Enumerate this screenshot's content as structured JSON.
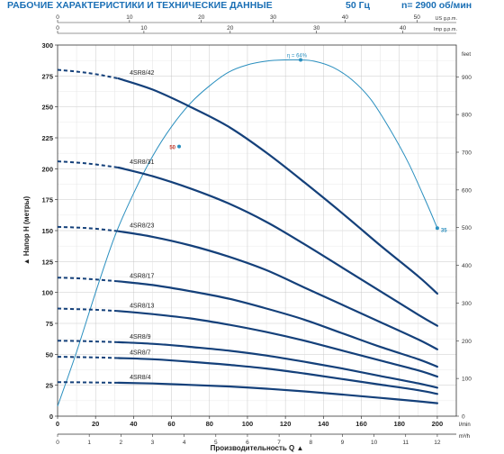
{
  "header": {
    "title": "РАБОЧИЕ ХАРАКТЕРИСТИКИ И ТЕХНИЧЕСКИЕ ДАННЫЕ",
    "frequency": "50 Гц",
    "speed": "n= 2900 об/мин"
  },
  "chart_data": {
    "type": "line",
    "ylabel": "Напор H (метры)",
    "ylabel_arrow": "▲",
    "xlabel": "Производительность Q",
    "xlabel_arrow": "▲",
    "ylim": [
      0,
      300
    ],
    "yticks": [
      0,
      25,
      50,
      75,
      100,
      125,
      150,
      175,
      200,
      225,
      250,
      275,
      300
    ],
    "xlim_lmin": [
      0,
      210
    ],
    "xticks_lmin": [
      0,
      20,
      40,
      60,
      80,
      100,
      120,
      140,
      160,
      180,
      200
    ],
    "xunit_lmin": "l/min",
    "xticks_m3h": [
      0,
      1,
      2,
      3,
      4,
      5,
      6,
      7,
      8,
      9,
      10,
      11,
      12
    ],
    "xunit_m3h": "m³/h",
    "top_axes": [
      {
        "unit": "US g.p.m.",
        "ticks": [
          0,
          10,
          20,
          30,
          40,
          50
        ]
      },
      {
        "unit": "Imp g.p.m.",
        "ticks": [
          0,
          10,
          20,
          30,
          40
        ]
      }
    ],
    "feet_unit": "feet",
    "feet_ticks": [
      0,
      100,
      200,
      300,
      400,
      500,
      600,
      700,
      800,
      900
    ],
    "grid": true,
    "series": [
      {
        "name": "4SR8/42",
        "dash_x": [
          0,
          10,
          20,
          32
        ],
        "dash_y": [
          280,
          278.5,
          276.5,
          273
        ],
        "x": [
          32,
          50,
          70,
          90,
          110,
          130,
          150,
          170,
          190,
          200
        ],
        "y": [
          273,
          264,
          250,
          234,
          213,
          189,
          164,
          138,
          113,
          99
        ]
      },
      {
        "name": "4SR8/31",
        "dash_x": [
          0,
          10,
          20,
          32
        ],
        "dash_y": [
          206,
          205,
          203.5,
          201
        ],
        "x": [
          32,
          50,
          70,
          90,
          110,
          130,
          150,
          170,
          190,
          200
        ],
        "y": [
          201,
          194,
          184,
          172,
          157,
          139,
          120,
          101,
          82,
          73
        ]
      },
      {
        "name": "4SR8/23",
        "dash_x": [
          0,
          10,
          20,
          32
        ],
        "dash_y": [
          153,
          152.5,
          151.5,
          149.5
        ],
        "x": [
          32,
          50,
          70,
          90,
          110,
          130,
          150,
          170,
          190,
          200
        ],
        "y": [
          149.5,
          145,
          138,
          129,
          118,
          104,
          90,
          76,
          62,
          54
        ]
      },
      {
        "name": "4SR8/17",
        "dash_x": [
          0,
          10,
          20,
          32
        ],
        "dash_y": [
          112,
          111.5,
          110.5,
          109
        ],
        "x": [
          32,
          50,
          70,
          90,
          110,
          130,
          150,
          170,
          190,
          200
        ],
        "y": [
          109,
          106,
          101,
          95,
          87,
          78,
          67,
          56,
          46,
          40
        ]
      },
      {
        "name": "4SR8/13",
        "dash_x": [
          0,
          10,
          20,
          32
        ],
        "dash_y": [
          87,
          86.5,
          86,
          85
        ],
        "x": [
          32,
          50,
          70,
          90,
          110,
          130,
          150,
          170,
          190,
          200
        ],
        "y": [
          85,
          82.5,
          79,
          74,
          68,
          61,
          53,
          45,
          37,
          32
        ]
      },
      {
        "name": "4SR8/9",
        "dash_x": [
          0,
          10,
          20,
          32
        ],
        "dash_y": [
          61,
          60.8,
          60.4,
          59.8
        ],
        "x": [
          32,
          50,
          70,
          90,
          110,
          130,
          150,
          170,
          190,
          200
        ],
        "y": [
          59.8,
          58.5,
          56,
          53,
          49,
          44,
          38.5,
          32.5,
          26.5,
          23
        ]
      },
      {
        "name": "4SR8/7",
        "dash_x": [
          0,
          10,
          20,
          32
        ],
        "dash_y": [
          48,
          47.8,
          47.5,
          47
        ],
        "x": [
          32,
          50,
          70,
          90,
          110,
          130,
          150,
          170,
          190,
          200
        ],
        "y": [
          47,
          46,
          44,
          41.5,
          38.5,
          34.5,
          30,
          25.5,
          21,
          18
        ]
      },
      {
        "name": "4SR8/4",
        "dash_x": [
          0,
          10,
          20,
          32
        ],
        "dash_y": [
          27.5,
          27.4,
          27.2,
          27
        ],
        "x": [
          32,
          50,
          70,
          90,
          110,
          130,
          150,
          170,
          190,
          200
        ],
        "y": [
          27,
          26.4,
          25.3,
          24,
          22.2,
          20,
          17.5,
          14.8,
          12,
          10.5
        ]
      }
    ],
    "efficiency": {
      "name": "η",
      "peak_label": "η = 64%",
      "x": [
        0,
        10,
        20,
        30,
        40,
        50,
        60,
        70,
        80,
        90,
        100,
        110,
        120,
        128,
        135,
        145,
        155,
        165,
        175,
        185,
        195,
        200
      ],
      "y": [
        8,
        52,
        100,
        145,
        180,
        210,
        234,
        253,
        267,
        278,
        284,
        287,
        288,
        288,
        287,
        282,
        272,
        256,
        232,
        204,
        170,
        152
      ],
      "markers": [
        {
          "label": "50",
          "x": 64,
          "y": 218
        },
        {
          "label": "64%",
          "x": 128,
          "y": 288
        },
        {
          "label": "35",
          "x": 200,
          "y": 152
        }
      ]
    },
    "colors": {
      "curve": "#14407a",
      "efficiency": "#2a8fbf",
      "accent": "#1a6fb5",
      "marker_label": "#c0392b"
    }
  }
}
